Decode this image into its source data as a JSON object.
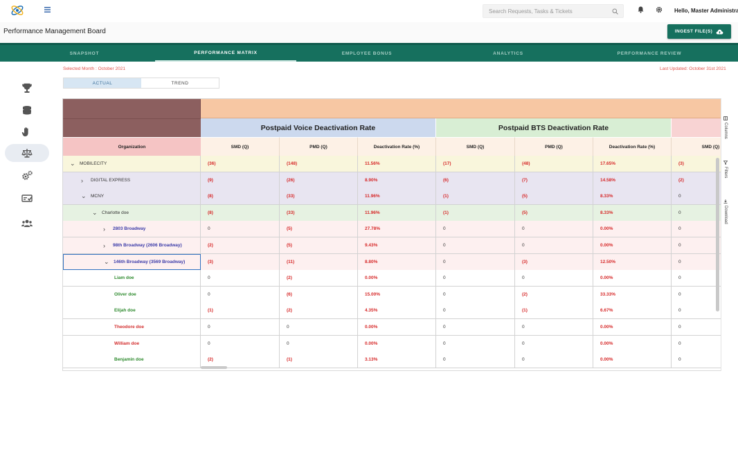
{
  "header": {
    "search_placeholder": "Search Requests, Tasks & Tickets",
    "greeting": "Hello, Master Administrator",
    "page_title": "Performance Management Board",
    "ingest_label": "INGEST FILE(S)"
  },
  "tabs": [
    {
      "label": "SNAPSHOT",
      "active": false
    },
    {
      "label": "PERFORMANCE MATRIX",
      "active": true
    },
    {
      "label": "EMPLOYEE BONUS",
      "active": false
    },
    {
      "label": "ANALYTICS",
      "active": false
    },
    {
      "label": "PERFORMANCE REVIEW",
      "active": false
    }
  ],
  "sidebar": [
    "trophy-icon",
    "coins-icon",
    "hand-icon",
    "balance-scale-icon",
    "cogs-icon",
    "money-check-icon",
    "users-icon"
  ],
  "info": {
    "selected_month": "Selected Month : October 2021",
    "last_updated": "Last Updated: October 31st 2021"
  },
  "view_toggle": {
    "actual": "ACTUAL",
    "trend": "TREND"
  },
  "table": {
    "groups": [
      "Postpaid Voice Deactivation Rate",
      "Postpaid BTS Deactivation Rate"
    ],
    "org_header": "Organization",
    "columns": [
      "SMD (Q)",
      "PMD (Q)",
      "Deactivation Rate (%)",
      "SMD (Q)",
      "PMD (Q)",
      "Deactivation Rate (%)",
      "SMD (Q)"
    ],
    "rows": [
      {
        "name": "MOBILECITY",
        "toggle": "⌄",
        "level": 0,
        "style": "l0",
        "values": [
          "(36)",
          "(148)",
          "11.56%",
          "(17)",
          "(48)",
          "17.65%",
          "(3)"
        ]
      },
      {
        "name": "DIGITAL EXPRESS",
        "toggle": "›",
        "level": 1,
        "style": "l1",
        "values": [
          "(9)",
          "(26)",
          "8.90%",
          "(6)",
          "(7)",
          "14.58%",
          "(2)"
        ]
      },
      {
        "name": "MCNY",
        "toggle": "⌄",
        "level": 1,
        "style": "l1",
        "values": [
          "(8)",
          "(33)",
          "11.96%",
          "(1)",
          "(5)",
          "8.33%",
          "0"
        ]
      },
      {
        "name": "Charlotte doe",
        "toggle": "⌄",
        "level": 2,
        "style": "l2",
        "values": [
          "(8)",
          "(33)",
          "11.96%",
          "(1)",
          "(5)",
          "8.33%",
          "0"
        ]
      },
      {
        "name": "2803 Broadway",
        "toggle": "›",
        "level": 3,
        "style": "l3",
        "values": [
          "0",
          "(5)",
          "27.78%",
          "0",
          "0",
          "0.00%",
          "0"
        ]
      },
      {
        "name": "98th Broadway (2606 Broadway)",
        "toggle": "›",
        "level": 3,
        "style": "l3",
        "values": [
          "(2)",
          "(5)",
          "9.43%",
          "0",
          "0",
          "0.00%",
          "0"
        ]
      },
      {
        "name": "146th Broadway (3569 Broadway)",
        "toggle": "⌄",
        "level": 3,
        "style": "l3",
        "values": [
          "(3)",
          "(11)",
          "8.80%",
          "0",
          "(3)",
          "12.50%",
          "0"
        ]
      },
      {
        "name": "Liam doe",
        "toggle": "",
        "level": 4,
        "style": "green",
        "values": [
          "0",
          "(2)",
          "0.00%",
          "0",
          "0",
          "0.00%",
          "0"
        ]
      },
      {
        "name": "Oliver doe",
        "toggle": "",
        "level": 4,
        "style": "green",
        "values": [
          "0",
          "(6)",
          "15.00%",
          "0",
          "(2)",
          "33.33%",
          "0"
        ]
      },
      {
        "name": "Elijah doe",
        "toggle": "",
        "level": 4,
        "style": "green",
        "values": [
          "(1)",
          "(2)",
          "4.35%",
          "0",
          "(1)",
          "6.67%",
          "0"
        ]
      },
      {
        "name": "Theodore doe",
        "toggle": "",
        "level": 4,
        "style": "red",
        "values": [
          "0",
          "0",
          "0.00%",
          "0",
          "0",
          "0.00%",
          "0"
        ]
      },
      {
        "name": "William doe",
        "toggle": "",
        "level": 4,
        "style": "red",
        "values": [
          "0",
          "0",
          "0.00%",
          "0",
          "0",
          "0.00%",
          "0"
        ]
      },
      {
        "name": "Benjamin doe",
        "toggle": "",
        "level": 4,
        "style": "green",
        "values": [
          "(2)",
          "(1)",
          "3.13%",
          "0",
          "0",
          "0.00%",
          "0"
        ]
      }
    ]
  },
  "side_panel": {
    "columns": "Columns",
    "filters": "Filters",
    "download": "Download"
  },
  "colors": {
    "brand_green": "#16705e",
    "corner_brown": "#8c5f5f",
    "peach": "#f7c7a3",
    "voice_blue": "#ccd9ee",
    "bts_green": "#d8eed4",
    "org_pink": "#f5c4c4",
    "col_header": "#fdf1e6",
    "row_l0": "#f9f6dc",
    "row_l1": "#e8e5f1",
    "row_l2": "#e6f2e2",
    "row_l3": "#fdf0f0",
    "neg_red": "#d62828",
    "name_green": "#2e8a2e",
    "name_red": "#d22b2b",
    "name_blue": "#3a3aa8"
  }
}
